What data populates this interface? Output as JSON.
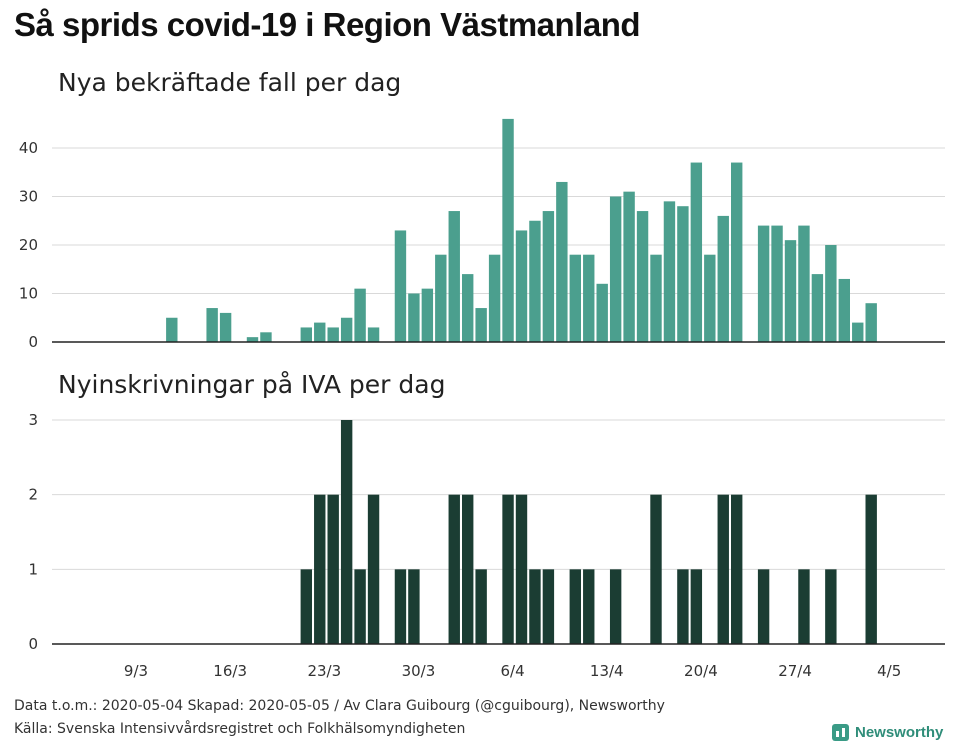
{
  "title": "Så sprids covid-19 i Region Västmanland",
  "footer": {
    "line1": "Data t.o.m.: 2020-05-04 Skapad: 2020-05-05 / Av Clara Guibourg (@cguibourg), Newsworthy",
    "line2": "Källa: Svenska Intensivvårdsregistret och Folkhälsomyndigheten"
  },
  "brand": {
    "name": "Newsworthy",
    "icon": "bar-chart-logo-icon"
  },
  "colors": {
    "cases": "#4b9f8e",
    "icu": "#1b3d33",
    "grid": "#d9d9d9",
    "baseline": "#222222"
  },
  "chart_data": [
    {
      "type": "bar",
      "title": "Nya bekräftade fall per dag",
      "x": [
        "2020-03-09",
        "2020-03-10",
        "2020-03-11",
        "2020-03-12",
        "2020-03-13",
        "2020-03-14",
        "2020-03-15",
        "2020-03-16",
        "2020-03-17",
        "2020-03-18",
        "2020-03-19",
        "2020-03-20",
        "2020-03-21",
        "2020-03-22",
        "2020-03-23",
        "2020-03-24",
        "2020-03-25",
        "2020-03-26",
        "2020-03-27",
        "2020-03-28",
        "2020-03-29",
        "2020-03-30",
        "2020-03-31",
        "2020-04-01",
        "2020-04-02",
        "2020-04-03",
        "2020-04-04",
        "2020-04-05",
        "2020-04-06",
        "2020-04-07",
        "2020-04-08",
        "2020-04-09",
        "2020-04-10",
        "2020-04-11",
        "2020-04-12",
        "2020-04-13",
        "2020-04-14",
        "2020-04-15",
        "2020-04-16",
        "2020-04-17",
        "2020-04-18",
        "2020-04-19",
        "2020-04-20",
        "2020-04-21",
        "2020-04-22",
        "2020-04-23",
        "2020-04-24",
        "2020-04-25",
        "2020-04-26",
        "2020-04-27",
        "2020-04-28",
        "2020-04-29",
        "2020-04-30",
        "2020-05-01",
        "2020-05-02",
        "2020-05-03",
        "2020-05-04"
      ],
      "values": [
        0,
        0,
        0,
        0,
        5,
        0,
        0,
        7,
        6,
        0,
        1,
        2,
        0,
        0,
        3,
        4,
        3,
        5,
        11,
        3,
        0,
        23,
        10,
        11,
        18,
        27,
        14,
        7,
        18,
        46,
        23,
        25,
        27,
        33,
        18,
        18,
        12,
        30,
        31,
        27,
        18,
        29,
        28,
        37,
        18,
        26,
        37,
        0,
        24,
        24,
        21,
        24,
        14,
        20,
        13,
        4,
        8
      ],
      "ylim": [
        0,
        47
      ],
      "yticks": [
        0,
        10,
        20,
        30,
        40
      ],
      "grid": true
    },
    {
      "type": "bar",
      "title": "Nyinskrivningar på IVA per dag",
      "x": [
        "2020-03-09",
        "2020-03-10",
        "2020-03-11",
        "2020-03-12",
        "2020-03-13",
        "2020-03-14",
        "2020-03-15",
        "2020-03-16",
        "2020-03-17",
        "2020-03-18",
        "2020-03-19",
        "2020-03-20",
        "2020-03-21",
        "2020-03-22",
        "2020-03-23",
        "2020-03-24",
        "2020-03-25",
        "2020-03-26",
        "2020-03-27",
        "2020-03-28",
        "2020-03-29",
        "2020-03-30",
        "2020-03-31",
        "2020-04-01",
        "2020-04-02",
        "2020-04-03",
        "2020-04-04",
        "2020-04-05",
        "2020-04-06",
        "2020-04-07",
        "2020-04-08",
        "2020-04-09",
        "2020-04-10",
        "2020-04-11",
        "2020-04-12",
        "2020-04-13",
        "2020-04-14",
        "2020-04-15",
        "2020-04-16",
        "2020-04-17",
        "2020-04-18",
        "2020-04-19",
        "2020-04-20",
        "2020-04-21",
        "2020-04-22",
        "2020-04-23",
        "2020-04-24",
        "2020-04-25",
        "2020-04-26",
        "2020-04-27",
        "2020-04-28",
        "2020-04-29",
        "2020-04-30",
        "2020-05-01",
        "2020-05-02",
        "2020-05-03",
        "2020-05-04"
      ],
      "values": [
        0,
        0,
        0,
        0,
        0,
        0,
        0,
        0,
        0,
        0,
        0,
        0,
        0,
        0,
        1,
        2,
        2,
        3,
        1,
        2,
        0,
        1,
        1,
        0,
        0,
        2,
        2,
        1,
        0,
        2,
        2,
        1,
        1,
        0,
        1,
        1,
        0,
        1,
        0,
        0,
        2,
        0,
        1,
        1,
        0,
        2,
        2,
        0,
        1,
        0,
        0,
        1,
        0,
        1,
        0,
        0,
        2
      ],
      "ylim": [
        0,
        3
      ],
      "yticks": [
        0,
        1,
        2,
        3
      ],
      "xticks": [
        "9/3",
        "16/3",
        "23/3",
        "30/3",
        "6/4",
        "13/4",
        "20/4",
        "27/4",
        "4/5"
      ],
      "grid": true
    }
  ]
}
